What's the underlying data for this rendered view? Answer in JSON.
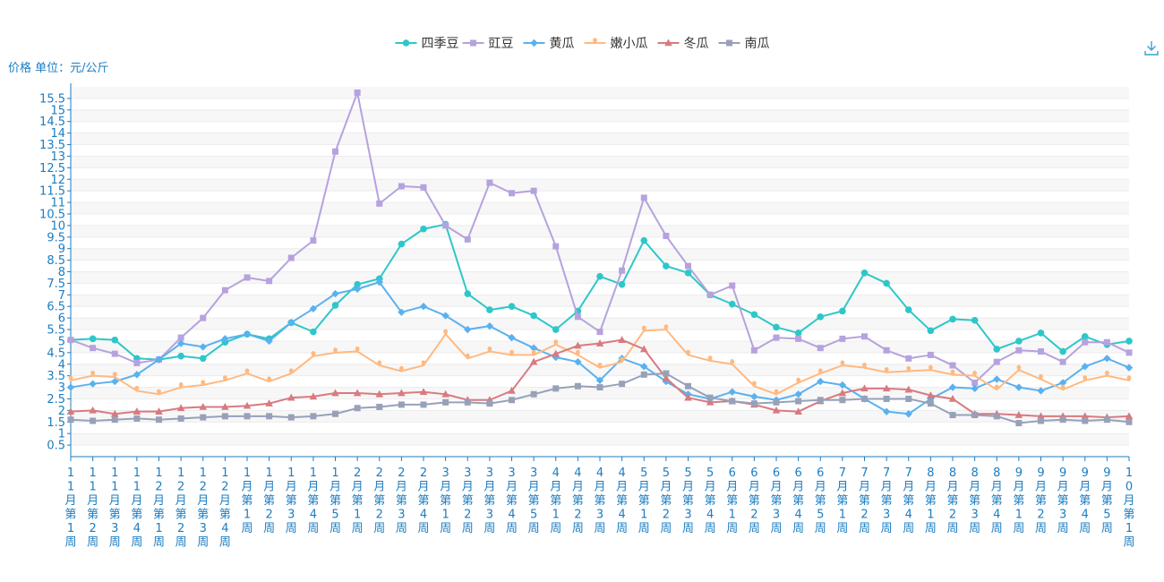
{
  "chart_data": {
    "type": "line",
    "ylabel": "价格 单位：元/公斤",
    "ylim": [
      0,
      16
    ],
    "yticks": [
      0.5,
      1,
      1.5,
      2,
      2.5,
      3,
      3.5,
      4,
      4.5,
      5,
      5.5,
      6,
      6.5,
      7,
      7.5,
      8,
      8.5,
      9,
      9.5,
      10,
      10.5,
      11,
      11.5,
      12,
      12.5,
      13,
      13.5,
      14,
      14.5,
      15,
      15.5
    ],
    "legend_position": "top-center",
    "categories": [
      "11月第1周",
      "11月第2周",
      "11月第3周",
      "11月第4周",
      "12月第1周",
      "12月第2周",
      "12月第3周",
      "12月第4周",
      "1月第1周",
      "1月第2周",
      "1月第3周",
      "1月第4周",
      "1月第5周",
      "2月第1周",
      "2月第2周",
      "2月第3周",
      "2月第4周",
      "3月第1周",
      "3月第2周",
      "3月第3周",
      "3月第4周",
      "3月第5周",
      "4月第1周",
      "4月第2周",
      "4月第3周",
      "4月第4周",
      "5月第1周",
      "5月第2周",
      "5月第3周",
      "5月第4周",
      "6月第1周",
      "6月第2周",
      "6月第3周",
      "6月第4周",
      "6月第5周",
      "7月第1周",
      "7月第2周",
      "7月第3周",
      "7月第4周",
      "8月第1周",
      "8月第2周",
      "8月第3周",
      "8月第4周",
      "9月第1周",
      "9月第2周",
      "9月第3周",
      "9月第4周",
      "9月第5周",
      "10月第1周"
    ],
    "series": [
      {
        "name": "四季豆",
        "color": "#2ec7c9",
        "marker": "circle",
        "values": [
          5.05,
          5.1,
          5.05,
          4.25,
          4.2,
          4.35,
          4.25,
          4.95,
          5.3,
          5.1,
          5.8,
          5.4,
          6.55,
          7.45,
          7.7,
          9.2,
          9.85,
          10.05,
          7.05,
          6.35,
          6.5,
          6.1,
          5.5,
          6.3,
          7.8,
          7.45,
          9.35,
          8.25,
          7.95,
          7.0,
          6.6,
          6.15,
          5.6,
          5.35,
          6.05,
          6.3,
          7.95,
          7.5,
          6.35,
          5.45,
          5.95,
          5.9,
          4.65,
          5.0,
          5.35,
          4.55,
          5.2,
          4.85,
          5.0
        ]
      },
      {
        "name": "豇豆",
        "color": "#b6a2de",
        "marker": "square",
        "values": [
          5.05,
          4.7,
          4.45,
          4.05,
          4.2,
          5.15,
          6.0,
          7.2,
          7.75,
          7.6,
          8.6,
          9.35,
          13.2,
          15.75,
          10.95,
          11.7,
          11.65,
          10.0,
          9.4,
          11.85,
          11.4,
          11.5,
          9.1,
          6.05,
          5.4,
          8.05,
          11.2,
          9.55,
          8.25,
          7.0,
          7.4,
          4.6,
          5.15,
          5.1,
          4.7,
          5.1,
          5.2,
          4.6,
          4.25,
          4.4,
          3.95,
          3.2,
          4.1,
          4.6,
          4.55,
          4.1,
          4.95,
          4.95,
          4.5
        ]
      },
      {
        "name": "黄瓜",
        "color": "#5ab1ef",
        "marker": "diamond",
        "values": [
          3.0,
          3.15,
          3.25,
          3.55,
          4.2,
          4.9,
          4.75,
          5.1,
          5.3,
          5.0,
          5.8,
          6.4,
          7.05,
          7.25,
          7.55,
          6.25,
          6.5,
          6.1,
          5.5,
          5.65,
          5.15,
          4.7,
          4.3,
          4.1,
          3.3,
          4.25,
          3.9,
          3.25,
          2.7,
          2.5,
          2.8,
          2.6,
          2.45,
          2.7,
          3.25,
          3.1,
          2.5,
          1.95,
          1.85,
          2.5,
          3.0,
          2.95,
          3.35,
          3.0,
          2.85,
          3.2,
          3.9,
          4.25,
          3.85
        ]
      },
      {
        "name": "嫩小瓜",
        "color": "#ffb980",
        "marker": "pin",
        "values": [
          3.3,
          3.5,
          3.45,
          2.85,
          2.7,
          3.0,
          3.1,
          3.3,
          3.6,
          3.25,
          3.6,
          4.35,
          4.5,
          4.55,
          3.95,
          3.7,
          3.95,
          5.3,
          4.25,
          4.55,
          4.4,
          4.4,
          4.85,
          4.4,
          3.85,
          4.1,
          5.45,
          5.5,
          4.4,
          4.15,
          4.0,
          3.05,
          2.7,
          3.2,
          3.6,
          3.95,
          3.85,
          3.65,
          3.7,
          3.75,
          3.55,
          3.5,
          2.9,
          3.75,
          3.35,
          2.9,
          3.3,
          3.5,
          3.3
        ]
      },
      {
        "name": "冬瓜",
        "color": "#d87a80",
        "marker": "triangle",
        "values": [
          1.95,
          2.0,
          1.85,
          1.95,
          1.95,
          2.1,
          2.15,
          2.15,
          2.2,
          2.3,
          2.55,
          2.6,
          2.75,
          2.75,
          2.7,
          2.75,
          2.8,
          2.7,
          2.45,
          2.45,
          2.85,
          4.1,
          4.45,
          4.8,
          4.9,
          5.05,
          4.65,
          3.4,
          2.55,
          2.35,
          2.4,
          2.25,
          2.0,
          1.95,
          2.4,
          2.75,
          2.95,
          2.95,
          2.9,
          2.65,
          2.5,
          1.85,
          1.85,
          1.8,
          1.75,
          1.75,
          1.75,
          1.7,
          1.75
        ]
      },
      {
        "name": "南瓜",
        "color": "#97a1b8",
        "marker": "square-gray",
        "values": [
          1.6,
          1.55,
          1.6,
          1.65,
          1.6,
          1.65,
          1.7,
          1.75,
          1.75,
          1.75,
          1.7,
          1.75,
          1.85,
          2.1,
          2.15,
          2.25,
          2.25,
          2.35,
          2.35,
          2.3,
          2.45,
          2.7,
          2.95,
          3.05,
          3.0,
          3.15,
          3.55,
          3.6,
          3.05,
          2.55,
          2.4,
          2.3,
          2.35,
          2.4,
          2.45,
          2.45,
          2.5,
          2.5,
          2.5,
          2.3,
          1.8,
          1.8,
          1.75,
          1.45,
          1.55,
          1.6,
          1.55,
          1.6,
          1.5
        ]
      }
    ]
  },
  "toolbar": {
    "download_icon": "download-icon"
  }
}
